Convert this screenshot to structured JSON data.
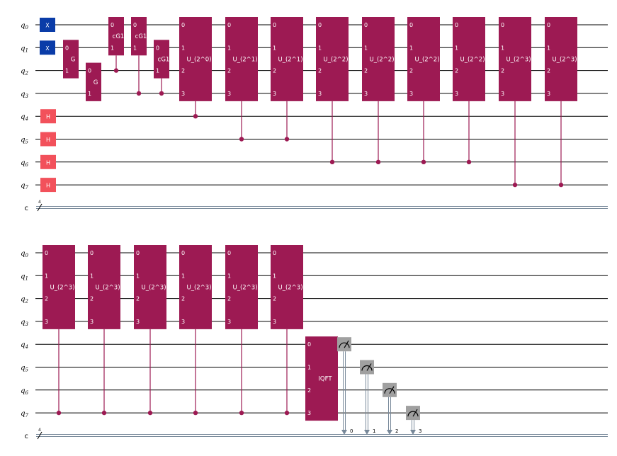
{
  "colors": {
    "x_gate": "#0A3CA8",
    "h_gate": "#F2515B",
    "custom_gate": "#9D1A53",
    "measure": "#A0A0A0",
    "wire": "#000000",
    "classical_wire": "#778899"
  },
  "qubit_labels": [
    "q0",
    "q1",
    "q2",
    "q3",
    "q4",
    "q5",
    "q6",
    "q7"
  ],
  "classical_label": "c",
  "classical_count": "4",
  "panels": [
    {
      "gates": [
        {
          "name": "X",
          "qubits": [
            0
          ]
        },
        {
          "name": "X",
          "qubits": [
            1
          ]
        },
        {
          "name": "H",
          "qubits": [
            4
          ]
        },
        {
          "name": "H",
          "qubits": [
            5
          ]
        },
        {
          "name": "H",
          "qubits": [
            6
          ]
        },
        {
          "name": "H",
          "qubits": [
            7
          ]
        },
        {
          "name": "G",
          "qubits": [
            1,
            2
          ],
          "pin_labels": [
            "0",
            "1"
          ]
        },
        {
          "name": "G",
          "qubits": [
            2,
            3
          ],
          "pin_labels": [
            "0",
            "1"
          ]
        },
        {
          "name": "cG1",
          "qubits": [
            0,
            1
          ],
          "pin_labels": [
            "0",
            "1"
          ],
          "control": 2
        },
        {
          "name": "cG1",
          "qubits": [
            0,
            1
          ],
          "pin_labels": [
            "0",
            "1"
          ],
          "control": 3
        },
        {
          "name": "cG1",
          "qubits": [
            1,
            2
          ],
          "pin_labels": [
            "0",
            "1"
          ],
          "control": 3
        },
        {
          "name": "U_(2^0)",
          "qubits": [
            0,
            3
          ],
          "pin_labels": [
            "0",
            "1",
            "2",
            "3"
          ],
          "control": 4
        },
        {
          "name": "U_(2^1)",
          "qubits": [
            0,
            3
          ],
          "pin_labels": [
            "0",
            "1",
            "2",
            "3"
          ],
          "control": 5
        },
        {
          "name": "U_(2^1)",
          "qubits": [
            0,
            3
          ],
          "pin_labels": [
            "0",
            "1",
            "2",
            "3"
          ],
          "control": 5
        },
        {
          "name": "U_(2^2)",
          "qubits": [
            0,
            3
          ],
          "pin_labels": [
            "0",
            "1",
            "2",
            "3"
          ],
          "control": 6
        },
        {
          "name": "U_(2^2)",
          "qubits": [
            0,
            3
          ],
          "pin_labels": [
            "0",
            "1",
            "2",
            "3"
          ],
          "control": 6
        },
        {
          "name": "U_(2^2)",
          "qubits": [
            0,
            3
          ],
          "pin_labels": [
            "0",
            "1",
            "2",
            "3"
          ],
          "control": 6
        },
        {
          "name": "U_(2^2)",
          "qubits": [
            0,
            3
          ],
          "pin_labels": [
            "0",
            "1",
            "2",
            "3"
          ],
          "control": 6
        },
        {
          "name": "U_(2^3)",
          "qubits": [
            0,
            3
          ],
          "pin_labels": [
            "0",
            "1",
            "2",
            "3"
          ],
          "control": 7
        },
        {
          "name": "U_(2^3)",
          "qubits": [
            0,
            3
          ],
          "pin_labels": [
            "0",
            "1",
            "2",
            "3"
          ],
          "control": 7
        }
      ],
      "measurements": []
    },
    {
      "gates": [
        {
          "name": "U_(2^3)",
          "qubits": [
            0,
            3
          ],
          "pin_labels": [
            "0",
            "1",
            "2",
            "3"
          ],
          "control": 7
        },
        {
          "name": "U_(2^3)",
          "qubits": [
            0,
            3
          ],
          "pin_labels": [
            "0",
            "1",
            "2",
            "3"
          ],
          "control": 7
        },
        {
          "name": "U_(2^3)",
          "qubits": [
            0,
            3
          ],
          "pin_labels": [
            "0",
            "1",
            "2",
            "3"
          ],
          "control": 7
        },
        {
          "name": "U_(2^3)",
          "qubits": [
            0,
            3
          ],
          "pin_labels": [
            "0",
            "1",
            "2",
            "3"
          ],
          "control": 7
        },
        {
          "name": "U_(2^3)",
          "qubits": [
            0,
            3
          ],
          "pin_labels": [
            "0",
            "1",
            "2",
            "3"
          ],
          "control": 7
        },
        {
          "name": "U_(2^3)",
          "qubits": [
            0,
            3
          ],
          "pin_labels": [
            "0",
            "1",
            "2",
            "3"
          ],
          "control": 7
        },
        {
          "name": "IQFT",
          "qubits": [
            4,
            7
          ],
          "pin_labels": [
            "0",
            "1",
            "2",
            "3"
          ]
        }
      ],
      "measurements": [
        {
          "qubit": 4,
          "bit": "0"
        },
        {
          "qubit": 5,
          "bit": "1"
        },
        {
          "qubit": 6,
          "bit": "2"
        },
        {
          "qubit": 7,
          "bit": "3"
        }
      ]
    }
  ]
}
